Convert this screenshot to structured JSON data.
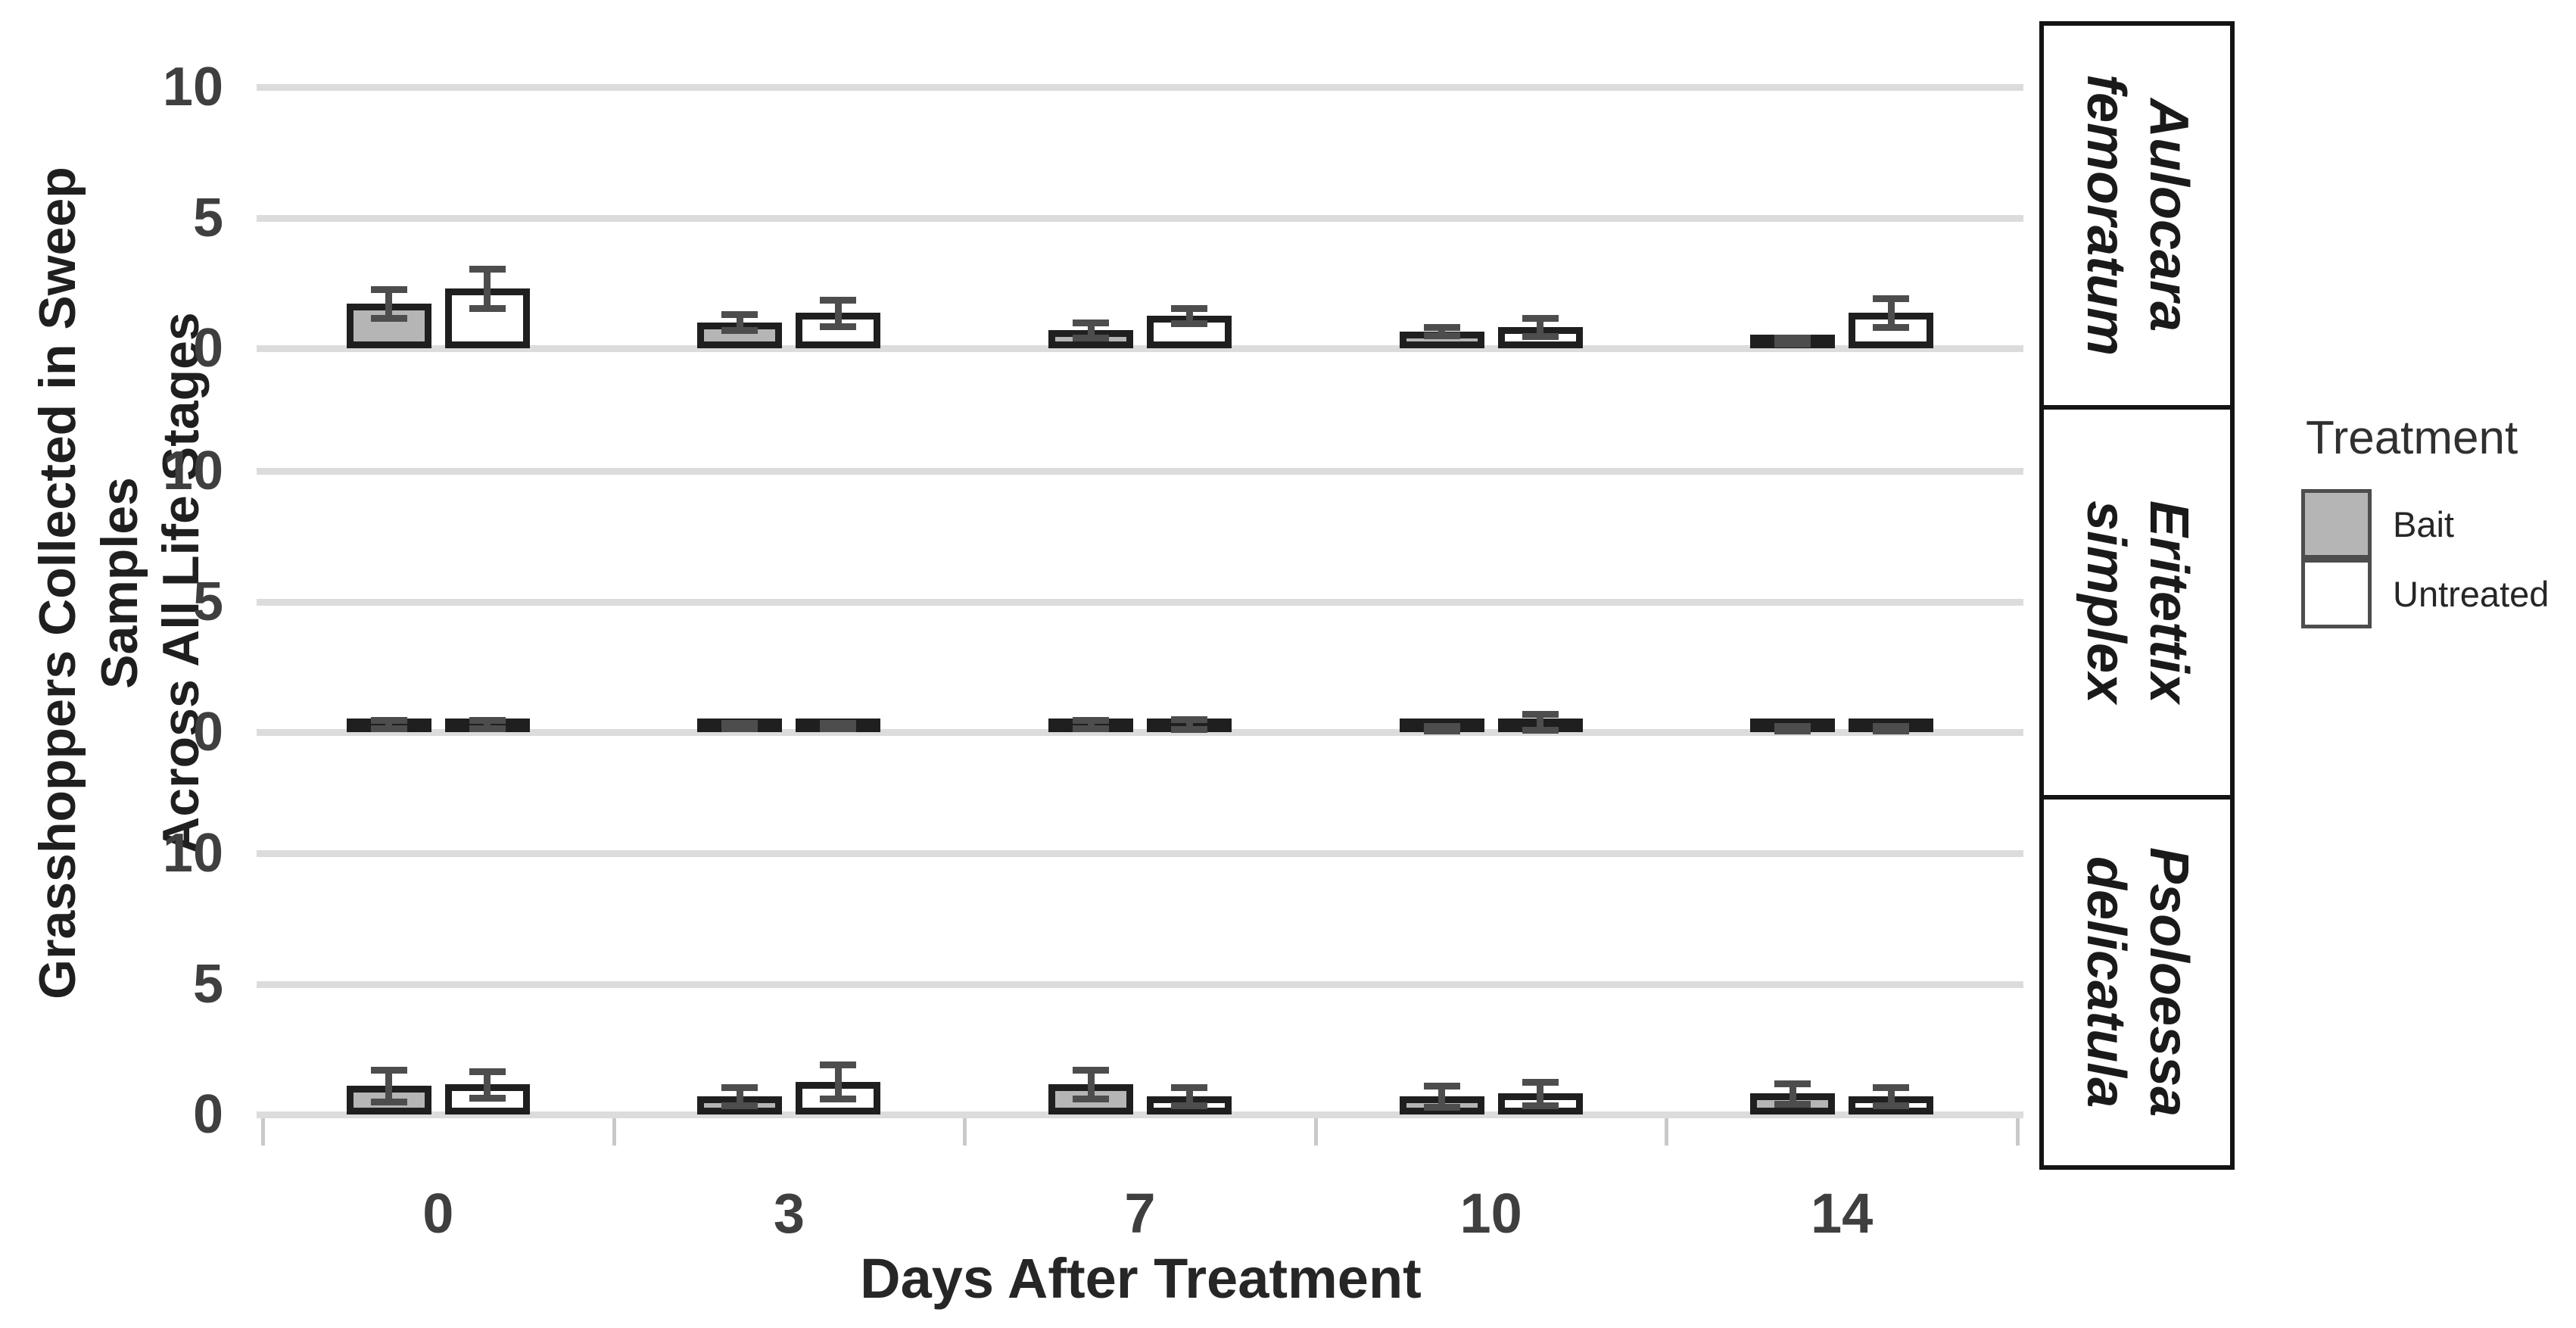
{
  "figure": {
    "background": "#ffffff"
  },
  "axes": {
    "y_title_line1": "Grasshoppers Collected in Sweep Samples",
    "y_title_line2": "Across All Life Stages",
    "x_title": "Days After Treatment"
  },
  "legend": {
    "title": "Treatment",
    "items": [
      {
        "label": "Bait",
        "fill": "#b5b5b5"
      },
      {
        "label": "Untreated",
        "fill": "#ffffff"
      }
    ]
  },
  "chart_data": {
    "type": "bar",
    "title": "",
    "xlabel": "Days After Treatment",
    "ylabel": "Grasshoppers Collected in Sweep Samples Across All Life Stages",
    "categories": [
      "0",
      "3",
      "7",
      "10",
      "14"
    ],
    "y_ticks": [
      10,
      5,
      0
    ],
    "ylim": [
      0,
      12.5
    ],
    "grid": true,
    "legend_title": "Treatment",
    "legend_position": "right",
    "bar_border_color": "#1f1f1f",
    "error_bar_color": "#4d4d4d",
    "gridline_color": "#dcdcdc",
    "facets": [
      {
        "label": "Aulocara femoratum",
        "label_lines": [
          "Aulocara",
          "femoratum"
        ],
        "series": [
          {
            "name": "Bait",
            "fill": "#b5b5b5",
            "values": [
              1.7,
              1.0,
              0.7,
              0.65,
              0.3
            ],
            "errors": [
              0.55,
              0.3,
              0.3,
              0.15,
              0.12
            ]
          },
          {
            "name": "Untreated",
            "fill": "#ffffff",
            "values": [
              2.3,
              1.35,
              1.25,
              0.8,
              1.35
            ],
            "errors": [
              0.75,
              0.5,
              0.3,
              0.35,
              0.55
            ]
          }
        ]
      },
      {
        "label": "Eritettix simplex",
        "label_lines": [
          "Eritettix",
          "simplex"
        ],
        "series": [
          {
            "name": "Bait",
            "fill": "#b5b5b5",
            "values": [
              0.3,
              0.25,
              0.3,
              0.15,
              0.15
            ],
            "errors": [
              0.15,
              0.1,
              0.15,
              0.08,
              0.08
            ]
          },
          {
            "name": "Untreated",
            "fill": "#ffffff",
            "values": [
              0.3,
              0.25,
              0.3,
              0.4,
              0.15
            ],
            "errors": [
              0.15,
              0.1,
              0.18,
              0.3,
              0.08
            ]
          }
        ]
      },
      {
        "label": "Psoloessa delicatula",
        "label_lines": [
          "Psoloessa",
          "delicatula"
        ],
        "series": [
          {
            "name": "Bait",
            "fill": "#b5b5b5",
            "values": [
              1.1,
              0.7,
              1.15,
              0.7,
              0.8
            ],
            "errors": [
              0.6,
              0.35,
              0.55,
              0.4,
              0.4
            ]
          },
          {
            "name": "Untreated",
            "fill": "#ffffff",
            "values": [
              1.15,
              1.25,
              0.7,
              0.8,
              0.7
            ],
            "errors": [
              0.5,
              0.65,
              0.35,
              0.45,
              0.35
            ]
          }
        ]
      }
    ]
  }
}
